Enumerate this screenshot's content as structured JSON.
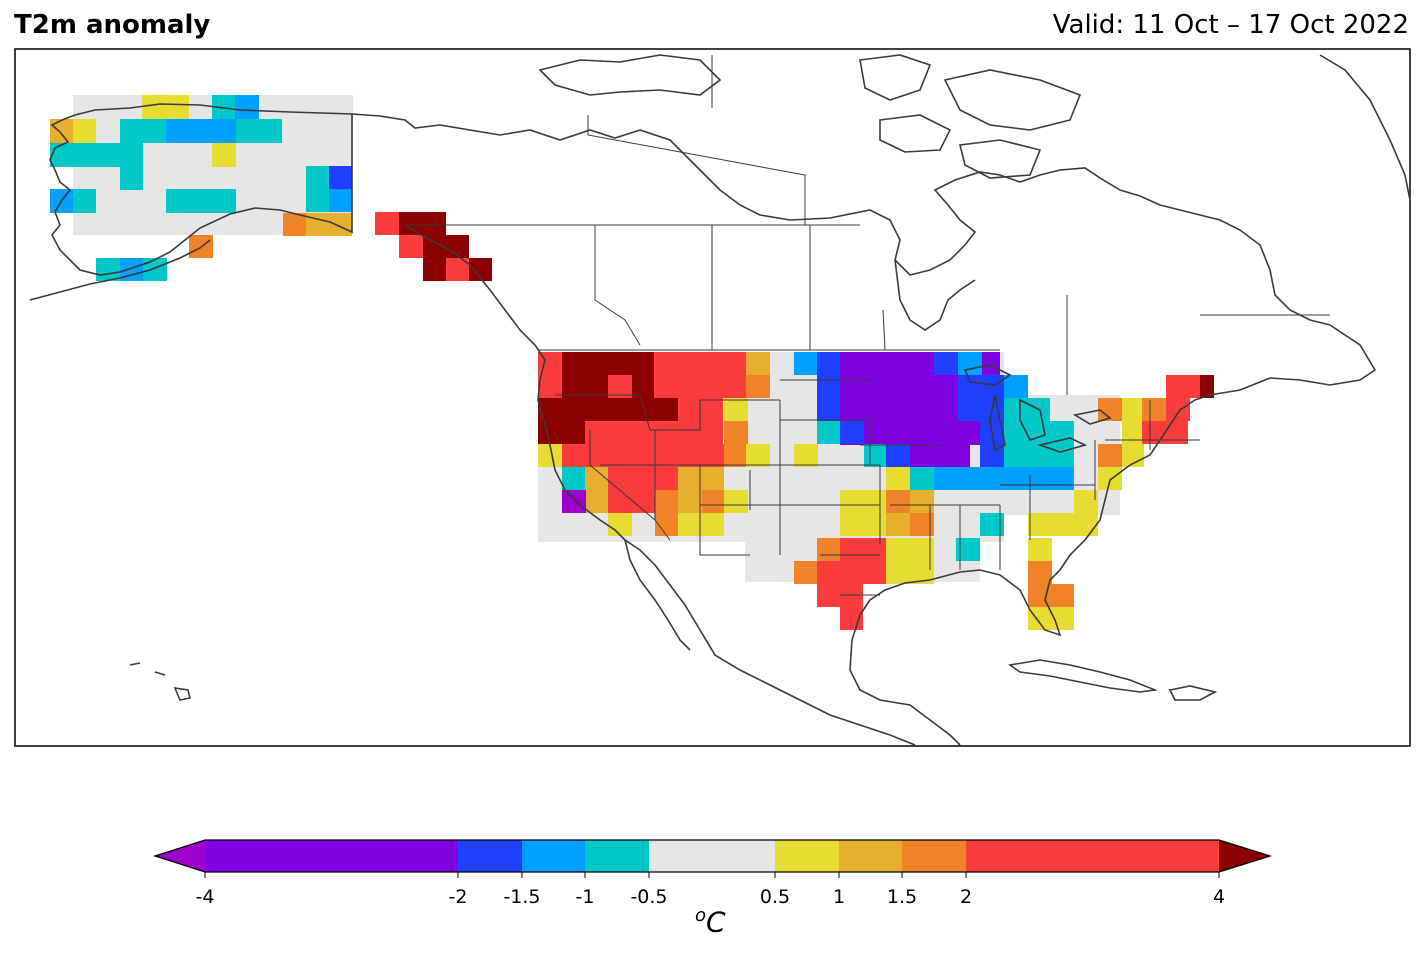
{
  "header": {
    "title": "T2m anomaly",
    "valid": "Valid: 11 Oct – 17 Oct 2022"
  },
  "colorbar": {
    "unit_base": "C",
    "unit_sup": "o",
    "tick_labels": [
      "-4",
      "-2",
      "-1.5",
      "-1",
      "-0.5",
      "0.5",
      "1",
      "1.5",
      "2",
      "4"
    ],
    "bins": [
      {
        "range": "< -4",
        "color": "#9d00cc"
      },
      {
        "range": "-4 to -2",
        "color": "#7f00df"
      },
      {
        "range": "-2 to -1.5",
        "color": "#2040ff"
      },
      {
        "range": "-1.5 to -1",
        "color": "#00a0ff"
      },
      {
        "range": "-1 to -0.5",
        "color": "#00c8c8"
      },
      {
        "range": "-0.5 to 0.5",
        "color": "#e6e6e6"
      },
      {
        "range": "0.5 to 1",
        "color": "#e6dc32"
      },
      {
        "range": "1 to 1.5",
        "color": "#e6af2d"
      },
      {
        "range": "1.5 to 2",
        "color": "#f08228"
      },
      {
        "range": "2 to 4",
        "color": "#fa3c3c"
      },
      {
        "range": "> 4",
        "color": "#8b0000"
      }
    ]
  },
  "map": {
    "region": "North America",
    "variable": "2 m temperature anomaly",
    "features": [
      "coastlines",
      "country borders",
      "US state borders",
      "Canadian province borders"
    ]
  }
}
